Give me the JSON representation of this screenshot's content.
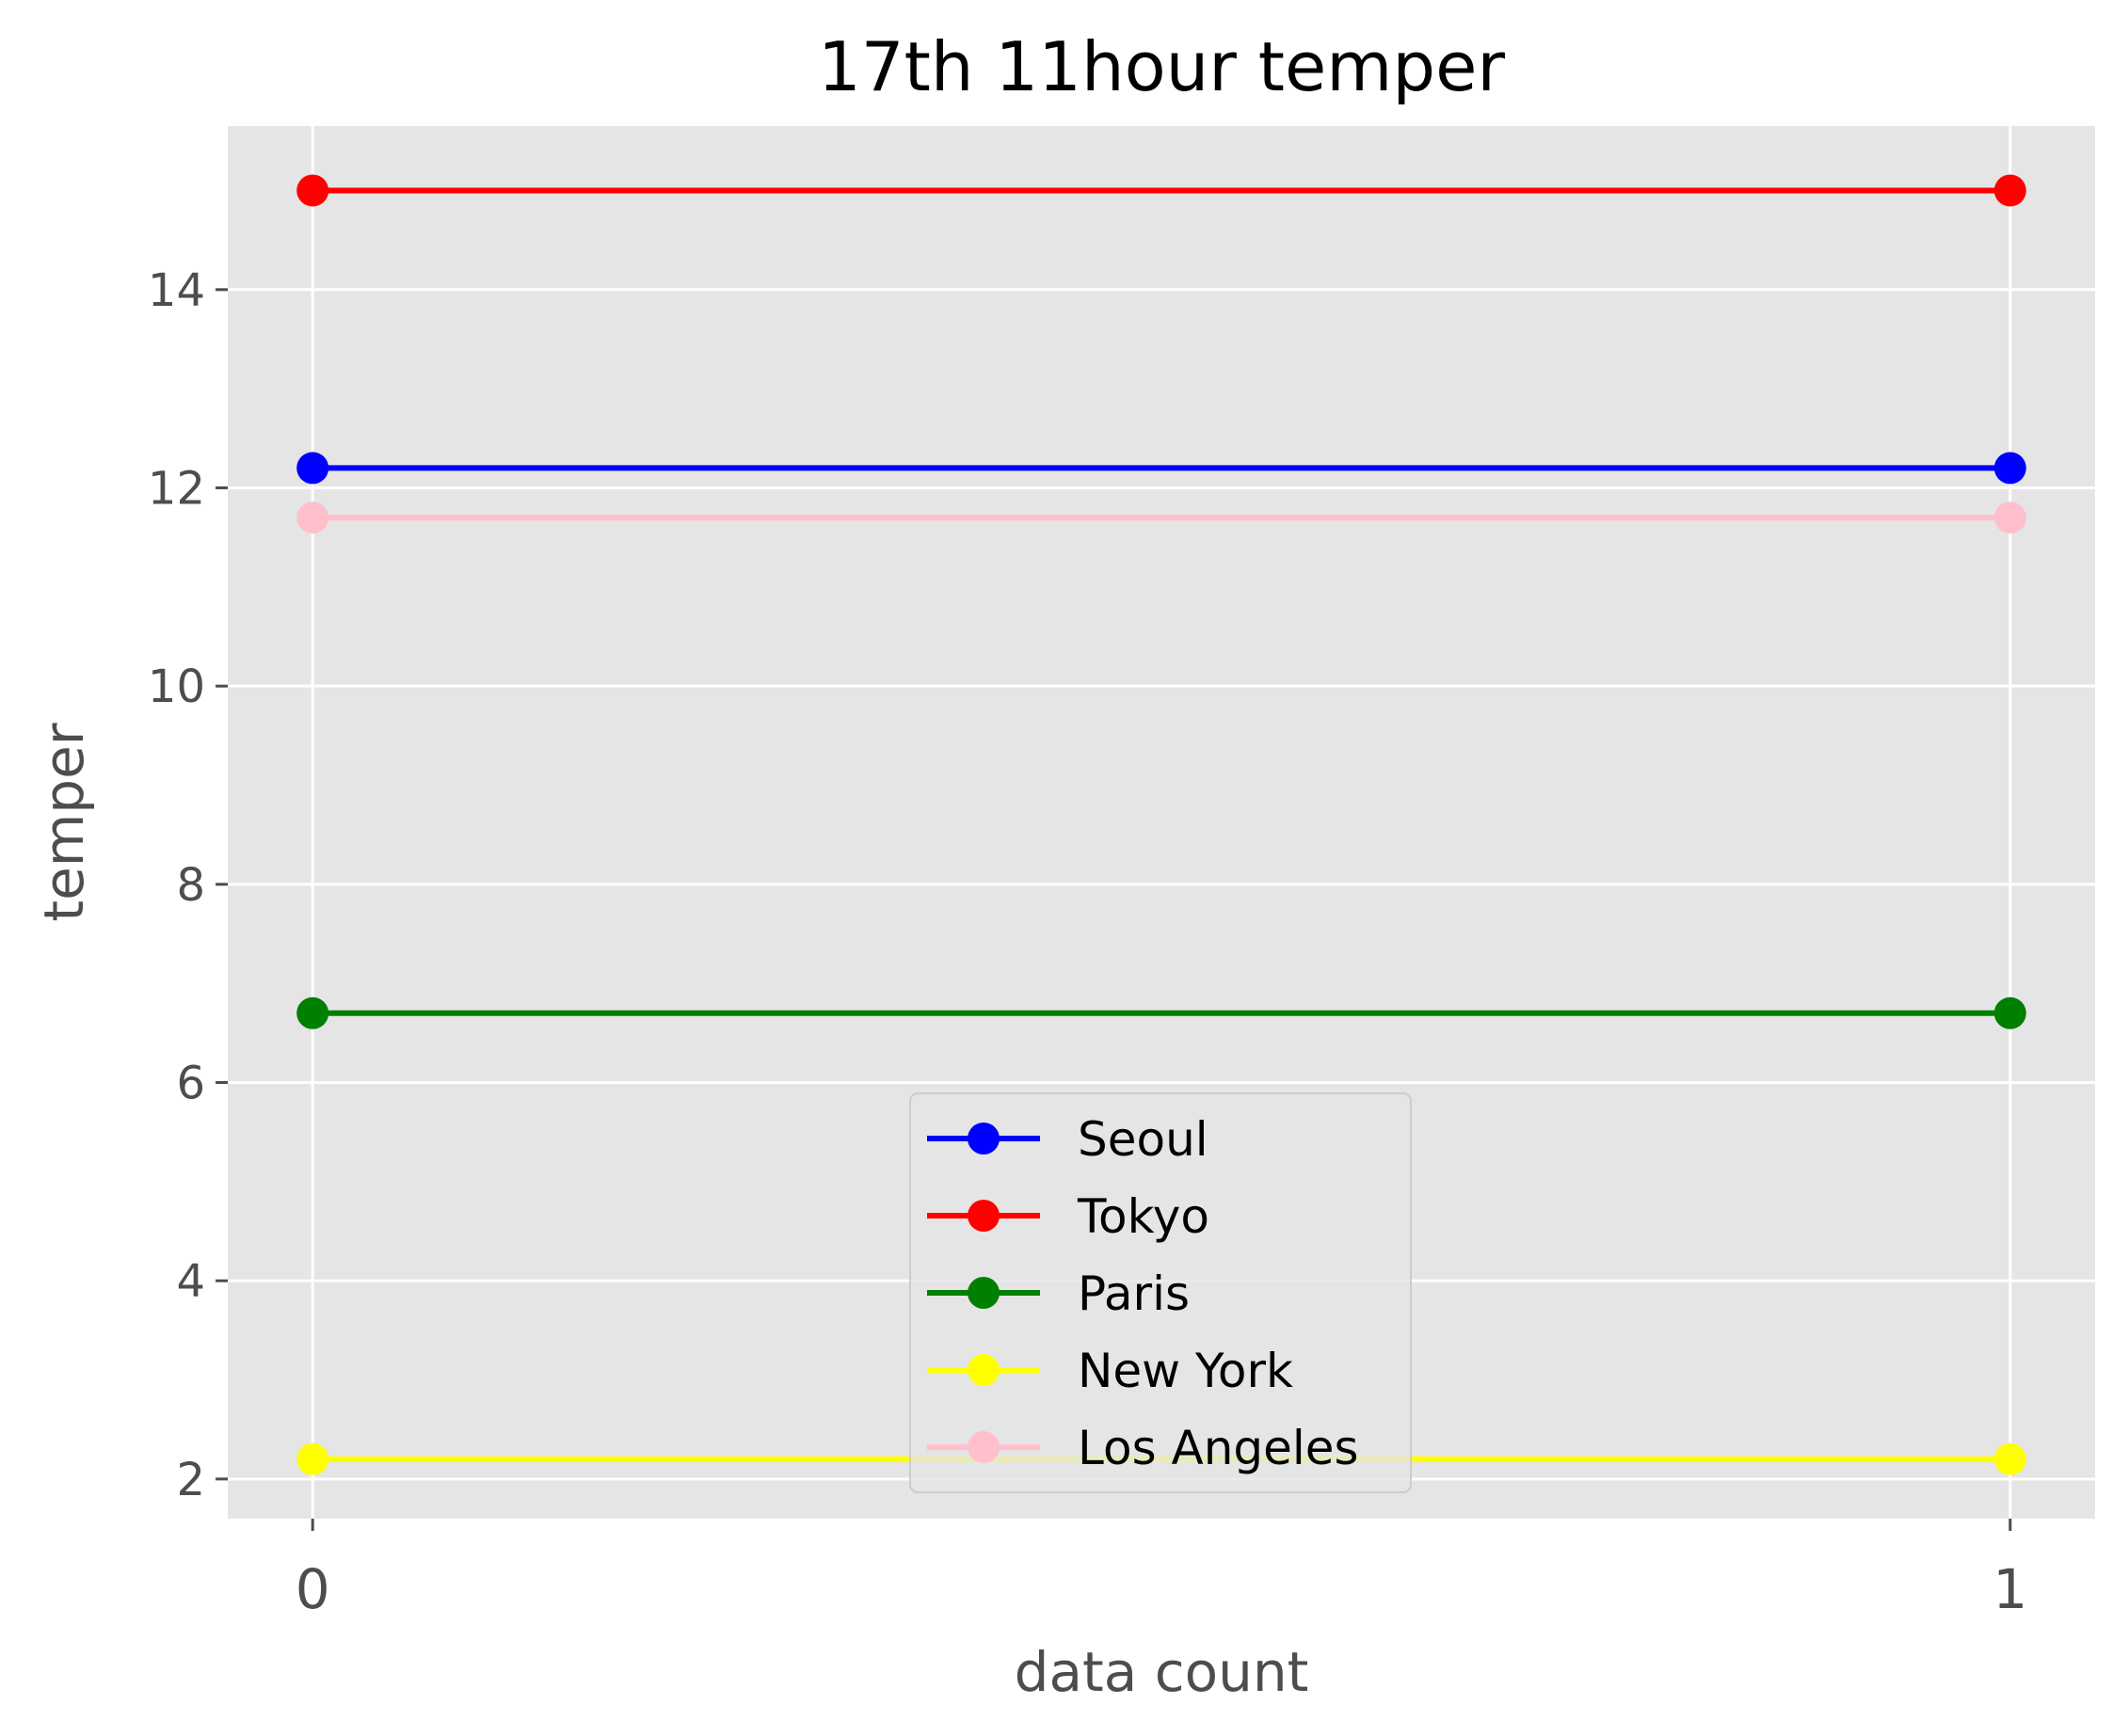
{
  "chart_data": {
    "type": "line",
    "title": "17th 11hour temper",
    "xlabel": "data count",
    "ylabel": "temper",
    "x": [
      0,
      1
    ],
    "xticks": [
      0,
      1
    ],
    "xtick_labels": [
      "0",
      "1"
    ],
    "yticks": [
      2,
      4,
      6,
      8,
      10,
      12,
      14
    ],
    "ytick_labels": [
      "2",
      "4",
      "6",
      "8",
      "10",
      "12",
      "14"
    ],
    "xlim": [
      -0.05,
      1.05
    ],
    "ylim": [
      1.6,
      15.65
    ],
    "grid": true,
    "legend_position": "lower center",
    "series": [
      {
        "name": "Seoul",
        "color": "#0000ff",
        "values": [
          12.2,
          12.2
        ]
      },
      {
        "name": "Tokyo",
        "color": "#ff0000",
        "values": [
          15.0,
          15.0
        ]
      },
      {
        "name": "Paris",
        "color": "#008000",
        "values": [
          6.7,
          6.7
        ]
      },
      {
        "name": "New York",
        "color": "#ffff00",
        "values": [
          2.2,
          2.2
        ]
      },
      {
        "name": "Los Angeles",
        "color": "#ffc0cb",
        "values": [
          11.7,
          11.7
        ]
      }
    ]
  }
}
